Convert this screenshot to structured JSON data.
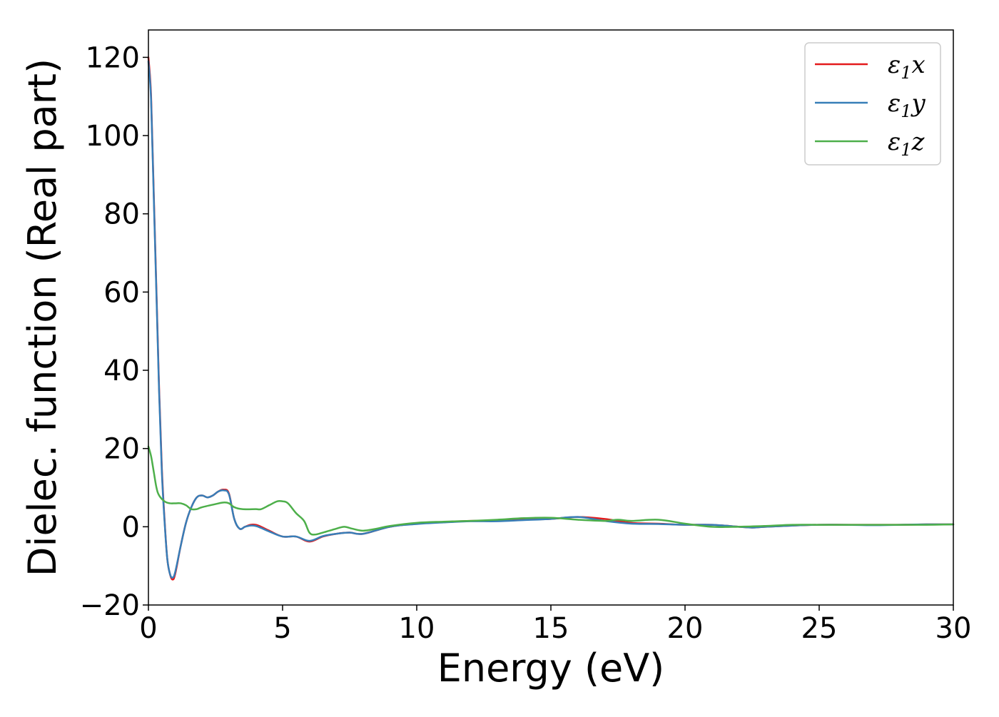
{
  "chart_data": {
    "type": "line",
    "title": "",
    "xlabel": "Energy (eV)",
    "ylabel": "Dielec. function (Real part)",
    "xlim": [
      0,
      30
    ],
    "ylim": [
      -20,
      127
    ],
    "xticks": [
      0,
      5,
      10,
      15,
      20,
      25,
      30
    ],
    "xtick_labels": [
      "0",
      "5",
      "10",
      "15",
      "20",
      "25",
      "30"
    ],
    "yticks": [
      -20,
      0,
      20,
      40,
      60,
      80,
      100,
      120
    ],
    "ytick_labels": [
      "−20",
      "0",
      "20",
      "40",
      "60",
      "80",
      "100",
      "120"
    ],
    "grid": false,
    "legend_position": "top-right",
    "series": [
      {
        "name": "ε₁x",
        "label_base": "ε",
        "label_sub": "1",
        "label_var": "x",
        "color": "#e41a1c",
        "x": [
          0,
          0.1,
          0.2,
          0.3,
          0.4,
          0.5,
          0.6,
          0.7,
          0.8,
          0.9,
          1.0,
          1.2,
          1.4,
          1.6,
          1.8,
          2.0,
          2.2,
          2.4,
          2.6,
          2.8,
          3.0,
          3.2,
          3.4,
          3.6,
          3.8,
          4.0,
          4.2,
          4.5,
          5.0,
          5.5,
          6.0,
          6.5,
          7.0,
          7.5,
          8.0,
          9.0,
          10.0,
          11.0,
          12.0,
          13.0,
          14.0,
          15.0,
          16.0,
          17.0,
          18.0,
          19.0,
          20.0,
          21.0,
          22.0,
          22.5,
          23.0,
          24.0,
          25.0,
          26.0,
          27.0,
          28.0,
          29.0,
          30.0
        ],
        "y": [
          120,
          110,
          85,
          60,
          35,
          15,
          2,
          -8,
          -12,
          -13.5,
          -12,
          -5,
          1,
          5,
          7.5,
          8,
          7.5,
          8,
          9,
          9.5,
          8.5,
          2,
          -0.5,
          0,
          0.5,
          0.5,
          0,
          -1,
          -2.5,
          -2.5,
          -3.8,
          -2.5,
          -1.8,
          -1.5,
          -1.8,
          0,
          0.8,
          1.2,
          1.5,
          1.5,
          1.8,
          2,
          2.5,
          2,
          1,
          0.8,
          0.5,
          0.5,
          0,
          -0.2,
          0,
          0.3,
          0.5,
          0.5,
          0.5,
          0.5,
          0.6,
          0.6
        ]
      },
      {
        "name": "ε₁y",
        "label_base": "ε",
        "label_sub": "1",
        "label_var": "y",
        "color": "#377eb8",
        "x": [
          0,
          0.1,
          0.2,
          0.3,
          0.4,
          0.5,
          0.6,
          0.7,
          0.8,
          0.9,
          1.0,
          1.2,
          1.4,
          1.6,
          1.8,
          2.0,
          2.2,
          2.4,
          2.6,
          2.8,
          3.0,
          3.2,
          3.4,
          3.6,
          3.8,
          4.0,
          4.2,
          4.5,
          5.0,
          5.5,
          6.0,
          6.5,
          7.0,
          7.5,
          8.0,
          9.0,
          10.0,
          11.0,
          12.0,
          13.0,
          14.0,
          15.0,
          16.0,
          17.0,
          18.0,
          19.0,
          20.0,
          21.0,
          22.0,
          22.5,
          23.0,
          24.0,
          25.0,
          26.0,
          27.0,
          28.0,
          29.0,
          30.0
        ],
        "y": [
          119,
          109,
          84,
          59,
          34,
          14,
          1.5,
          -8,
          -12,
          -13,
          -11.5,
          -5,
          1,
          5,
          7.5,
          8,
          7.5,
          8,
          9,
          9.3,
          8.3,
          2,
          -0.5,
          0,
          0.3,
          0.2,
          -0.3,
          -1.2,
          -2.5,
          -2.5,
          -3.6,
          -2.4,
          -1.8,
          -1.5,
          -1.8,
          0,
          0.7,
          1.1,
          1.4,
          1.4,
          1.7,
          2,
          2.5,
          1.5,
          0.8,
          0.7,
          0.5,
          0.5,
          0,
          -0.2,
          0,
          0.3,
          0.5,
          0.5,
          0.4,
          0.5,
          0.6,
          0.6
        ]
      },
      {
        "name": "ε₁z",
        "label_base": "ε",
        "label_sub": "1",
        "label_var": "z",
        "color": "#4daf4a",
        "x": [
          0,
          0.1,
          0.2,
          0.3,
          0.4,
          0.6,
          0.8,
          1.0,
          1.2,
          1.4,
          1.6,
          1.8,
          2.0,
          2.5,
          2.8,
          3.0,
          3.2,
          3.5,
          4.0,
          4.2,
          4.5,
          4.8,
          5.0,
          5.2,
          5.5,
          5.8,
          6.0,
          6.2,
          6.5,
          7.0,
          7.3,
          7.6,
          8.0,
          8.5,
          9.0,
          10.0,
          11.0,
          12.0,
          13.0,
          14.0,
          15.0,
          16.0,
          17.0,
          17.5,
          18.0,
          19.0,
          20.0,
          21.0,
          22.0,
          23.0,
          24.0,
          25.0,
          26.0,
          27.0,
          28.0,
          29.0,
          30.0
        ],
        "y": [
          20.5,
          18,
          14,
          10,
          8,
          6.5,
          6,
          6,
          6,
          5.5,
          4.5,
          4.5,
          5,
          5.8,
          6.2,
          6,
          5,
          4.5,
          4.5,
          4.5,
          5.5,
          6.5,
          6.5,
          6,
          3.5,
          1.5,
          -1.5,
          -2,
          -1.5,
          -0.5,
          0,
          -0.5,
          -1,
          -0.5,
          0.2,
          1,
          1.3,
          1.5,
          1.8,
          2.2,
          2.3,
          1.8,
          1.5,
          1.8,
          1.5,
          1.8,
          0.8,
          0,
          0,
          0.2,
          0.5,
          0.5,
          0.5,
          0.5,
          0.5,
          0.5,
          0.6
        ]
      }
    ]
  }
}
